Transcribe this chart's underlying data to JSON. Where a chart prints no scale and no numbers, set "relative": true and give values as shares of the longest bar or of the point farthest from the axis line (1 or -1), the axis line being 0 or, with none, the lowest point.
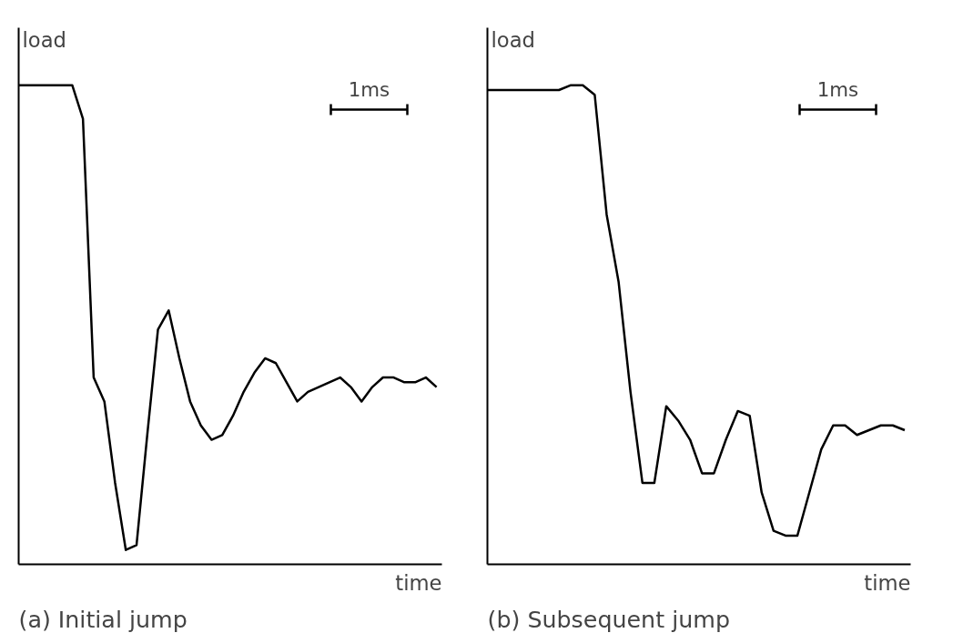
{
  "chart_data": [
    {
      "type": "line",
      "title": "(a) Initial jump",
      "xlabel": "time",
      "ylabel": "load",
      "relative": true,
      "annotations": [
        "1ms"
      ],
      "categories": [
        null,
        null,
        null,
        null,
        null,
        null,
        null,
        null,
        null,
        null,
        null,
        null,
        null,
        null,
        null,
        null,
        null,
        null,
        null,
        null,
        null,
        null,
        null,
        null,
        null,
        null,
        null,
        null,
        null,
        null,
        null,
        null,
        null,
        null,
        null,
        null,
        null,
        null,
        null,
        null
      ],
      "series": [
        {
          "color": "#000000",
          "values": [
            1,
            1,
            1,
            1,
            1,
            1,
            0.93,
            0.39,
            0.34,
            0.17,
            0.03,
            0.04,
            0.27,
            0.49,
            0.53,
            0.43,
            0.34,
            0.29,
            0.26,
            0.27,
            0.31,
            0.36,
            0.4,
            0.43,
            0.42,
            0.38,
            0.34,
            0.36,
            0.37,
            0.38,
            0.39,
            0.37,
            0.34,
            0.37,
            0.39,
            0.39,
            0.38,
            0.38,
            0.39,
            0.37
          ]
        }
      ]
    },
    {
      "type": "line",
      "title": "(b) Subsequent  jump",
      "xlabel": "time",
      "ylabel": "load",
      "relative": true,
      "annotations": [
        "1ms"
      ],
      "categories": [
        null,
        null,
        null,
        null,
        null,
        null,
        null,
        null,
        null,
        null,
        null,
        null,
        null,
        null,
        null,
        null,
        null,
        null,
        null,
        null,
        null,
        null,
        null,
        null,
        null,
        null,
        null,
        null,
        null,
        null,
        null,
        null,
        null,
        null,
        null,
        null
      ],
      "series": [
        {
          "color": "#000000",
          "values": [
            0.99,
            0.99,
            0.99,
            0.99,
            0.99,
            0.99,
            0.99,
            1.0,
            1.0,
            0.98,
            0.73,
            0.59,
            0.36,
            0.17,
            0.17,
            0.33,
            0.3,
            0.26,
            0.19,
            0.19,
            0.26,
            0.32,
            0.31,
            0.15,
            0.07,
            0.06,
            0.06,
            0.15,
            0.24,
            0.29,
            0.29,
            0.27,
            0.28,
            0.29,
            0.29,
            0.28
          ]
        }
      ]
    }
  ]
}
